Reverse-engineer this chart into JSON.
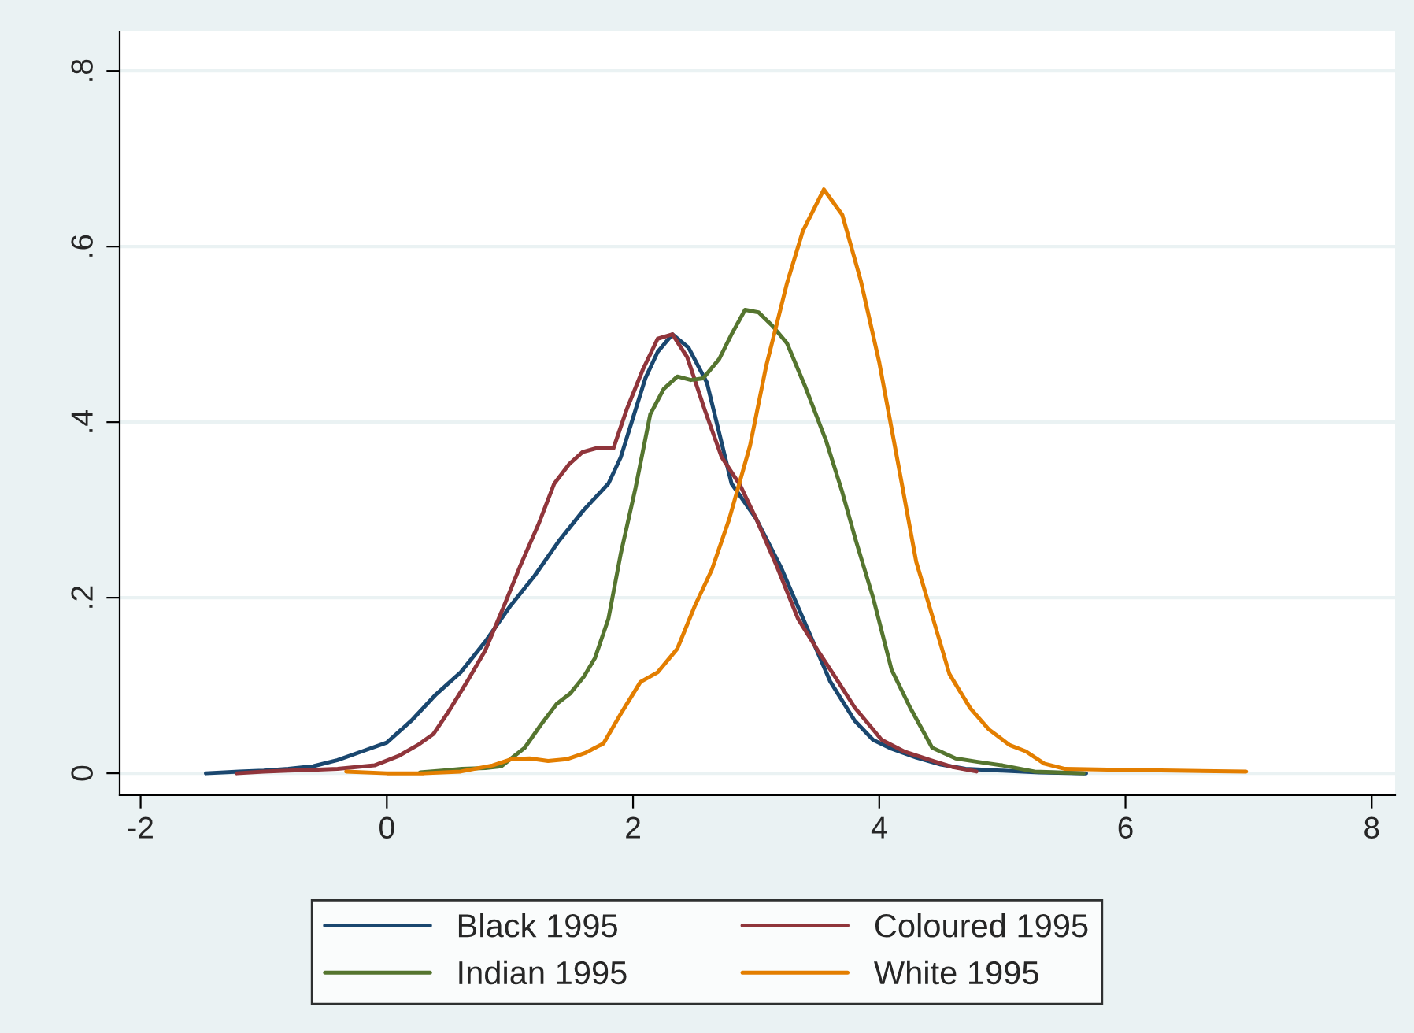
{
  "chart_data": {
    "type": "line",
    "xlim": [
      -2.17,
      8.19
    ],
    "ylim": [
      -0.025,
      0.845
    ],
    "xticks": [
      -2,
      0,
      2,
      4,
      6,
      8
    ],
    "yticks": [
      {
        "value": 0,
        "label": "0"
      },
      {
        "value": 0.2,
        "label": ".2"
      },
      {
        "value": 0.4,
        "label": ".4"
      },
      {
        "value": 0.6,
        "label": ".6"
      },
      {
        "value": 0.8,
        "label": ".8"
      }
    ],
    "grid": "y",
    "legend": "bottom",
    "marker": "none",
    "line_style": "solid",
    "series": [
      {
        "name": "Black 1995",
        "color": "#1a476f",
        "x": [
          -1.47,
          -1.2,
          -1.0,
          -0.8,
          -0.6,
          -0.4,
          -0.2,
          0,
          0.2,
          0.4,
          0.6,
          0.8,
          1.0,
          1.2,
          1.4,
          1.6,
          1.8,
          1.9,
          2.0,
          2.1,
          2.2,
          2.32,
          2.45,
          2.6,
          2.8,
          3.0,
          3.2,
          3.4,
          3.6,
          3.8,
          3.95,
          4.1,
          4.3,
          4.5,
          4.7,
          5.0,
          5.3,
          5.68
        ],
        "values": [
          0,
          0.002,
          0.003,
          0.005,
          0.008,
          0.015,
          0.025,
          0.035,
          0.06,
          0.09,
          0.115,
          0.15,
          0.19,
          0.225,
          0.265,
          0.3,
          0.33,
          0.36,
          0.405,
          0.45,
          0.48,
          0.5,
          0.485,
          0.445,
          0.33,
          0.29,
          0.235,
          0.17,
          0.105,
          0.06,
          0.038,
          0.028,
          0.018,
          0.01,
          0.005,
          0.003,
          0.001,
          0
        ]
      },
      {
        "name": "Coloured 1995",
        "color": "#90353b",
        "x": [
          -1.22,
          -1.0,
          -0.8,
          -0.6,
          -0.4,
          -0.1,
          0.1,
          0.25,
          0.38,
          0.5,
          0.65,
          0.8,
          0.95,
          1.08,
          1.23,
          1.36,
          1.48,
          1.59,
          1.72,
          1.84,
          1.95,
          2.08,
          2.2,
          2.32,
          2.44,
          2.58,
          2.72,
          2.87,
          3.0,
          3.17,
          3.34,
          3.5,
          3.64,
          3.8,
          4.02,
          4.2,
          4.44,
          4.6,
          4.79
        ],
        "values": [
          0,
          0.002,
          0.003,
          0.004,
          0.005,
          0.009,
          0.02,
          0.032,
          0.045,
          0.07,
          0.104,
          0.14,
          0.19,
          0.235,
          0.283,
          0.33,
          0.352,
          0.366,
          0.371,
          0.37,
          0.415,
          0.46,
          0.495,
          0.5,
          0.474,
          0.415,
          0.36,
          0.328,
          0.29,
          0.235,
          0.176,
          0.14,
          0.11,
          0.075,
          0.038,
          0.025,
          0.014,
          0.007,
          0.002
        ]
      },
      {
        "name": "Indian 1995",
        "color": "#55752f",
        "x": [
          0.27,
          0.45,
          0.61,
          0.8,
          0.93,
          1.12,
          1.25,
          1.38,
          1.49,
          1.6,
          1.69,
          1.8,
          1.9,
          2.02,
          2.14,
          2.25,
          2.36,
          2.47,
          2.57,
          2.7,
          2.8,
          2.91,
          3.02,
          3.13,
          3.25,
          3.4,
          3.57,
          3.7,
          3.81,
          3.95,
          4.1,
          4.25,
          4.43,
          4.62,
          4.8,
          5.0,
          5.26,
          5.45,
          5.66
        ],
        "values": [
          0.001,
          0.003,
          0.005,
          0.006,
          0.008,
          0.029,
          0.055,
          0.079,
          0.091,
          0.11,
          0.131,
          0.176,
          0.25,
          0.325,
          0.409,
          0.438,
          0.452,
          0.448,
          0.45,
          0.472,
          0.5,
          0.528,
          0.525,
          0.51,
          0.49,
          0.44,
          0.378,
          0.32,
          0.265,
          0.2,
          0.118,
          0.075,
          0.029,
          0.017,
          0.013,
          0.009,
          0.002,
          0.001,
          0
        ]
      },
      {
        "name": "White 1995",
        "color": "#e37e00",
        "x": [
          -0.33,
          0,
          0.3,
          0.6,
          0.86,
          1.01,
          1.16,
          1.31,
          1.46,
          1.61,
          1.76,
          1.91,
          2.06,
          2.2,
          2.36,
          2.5,
          2.64,
          2.78,
          2.95,
          3.08,
          3.25,
          3.38,
          3.55,
          3.7,
          3.85,
          4.0,
          4.15,
          4.3,
          4.45,
          4.57,
          4.74,
          4.89,
          5.06,
          5.19,
          5.34,
          5.51,
          5.94,
          6.4,
          6.98
        ],
        "values": [
          0.002,
          0,
          0,
          0.002,
          0.009,
          0.016,
          0.017,
          0.014,
          0.016,
          0.023,
          0.034,
          0.07,
          0.104,
          0.115,
          0.142,
          0.19,
          0.232,
          0.289,
          0.373,
          0.463,
          0.558,
          0.618,
          0.665,
          0.636,
          0.561,
          0.468,
          0.355,
          0.241,
          0.17,
          0.113,
          0.074,
          0.05,
          0.032,
          0.025,
          0.011,
          0.005,
          0.004,
          0.003,
          0.002
        ]
      }
    ]
  }
}
